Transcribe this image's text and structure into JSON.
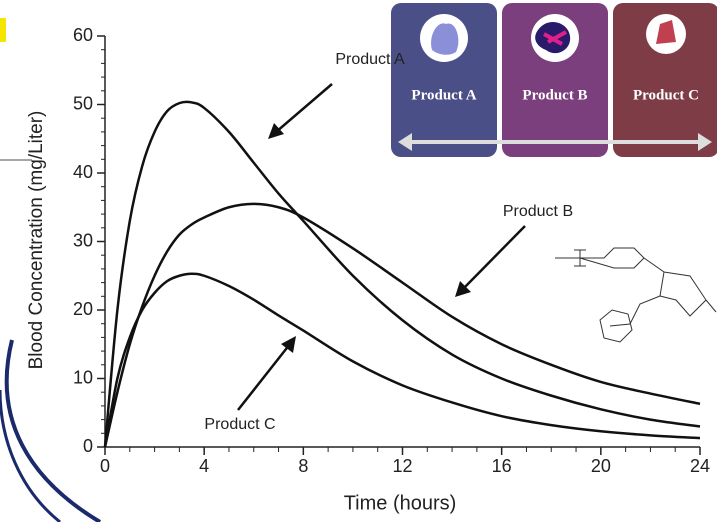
{
  "chart_data": {
    "type": "line",
    "xlabel": "Time (hours)",
    "ylabel": "Blood Concentration (mg/Liter)",
    "x": [
      0,
      0.5,
      1,
      1.5,
      2,
      2.5,
      3,
      3.5,
      4,
      5,
      6,
      7,
      8,
      10,
      12,
      14,
      16,
      18,
      20,
      22,
      24
    ],
    "series": [
      {
        "name": "Product A",
        "color": "#111111",
        "values": [
          0,
          20,
          33,
          41,
          46,
          49,
          50.2,
          50.3,
          49.5,
          46,
          41.5,
          37,
          33,
          25,
          18.5,
          13.5,
          10,
          7.5,
          5.5,
          4,
          3
        ]
      },
      {
        "name": "Product B",
        "color": "#111111",
        "values": [
          0,
          8,
          15,
          20.5,
          25,
          28.5,
          31,
          32.5,
          33.5,
          35,
          35.5,
          35,
          33.5,
          29,
          24,
          19,
          15,
          12,
          9.5,
          7.8,
          6.3
        ]
      },
      {
        "name": "Product C",
        "color": "#111111",
        "values": [
          0,
          10,
          16,
          20,
          22.5,
          24.2,
          25,
          25.3,
          25,
          23.5,
          21.5,
          19.2,
          17,
          12.5,
          9,
          6.5,
          4.5,
          3.2,
          2.3,
          1.7,
          1.3
        ]
      }
    ],
    "xlim": [
      0,
      24
    ],
    "xticks": [
      0,
      4,
      8,
      12,
      16,
      20,
      24
    ],
    "ylim": [
      0,
      60
    ],
    "yticks": [
      0,
      10,
      20,
      30,
      40,
      50,
      60
    ],
    "panel_labels": [
      "Product A",
      "Product B",
      "Product C"
    ]
  }
}
